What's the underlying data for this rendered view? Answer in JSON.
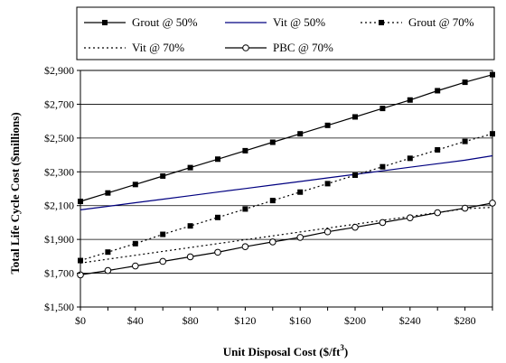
{
  "chart_data": {
    "type": "line",
    "xlabel": "Unit Disposal Cost ($/ft",
    "xlabel_sup": "3",
    "xlabel_end": ")",
    "ylabel": "Total Life Cycle Cost ($millions)",
    "xlim": [
      0,
      300
    ],
    "ylim": [
      1500,
      2900
    ],
    "x_ticks": [
      0,
      40,
      80,
      120,
      160,
      200,
      240,
      280
    ],
    "x_tick_labels": [
      "$0",
      "$40",
      "$80",
      "$120",
      "$160",
      "$200",
      "$240",
      "$280"
    ],
    "y_ticks": [
      1500,
      1700,
      1900,
      2100,
      2300,
      2500,
      2700,
      2900
    ],
    "y_tick_labels": [
      "$1,500",
      "$1,700",
      "$1,900",
      "$2,100",
      "$2,300",
      "$2,500",
      "$2,700",
      "$2,900"
    ],
    "grid": "horizontal",
    "legend_position": "top",
    "x": [
      0,
      20,
      40,
      60,
      80,
      100,
      120,
      140,
      160,
      180,
      200,
      220,
      240,
      260,
      280,
      300
    ],
    "series": [
      {
        "name": "Grout @ 50%",
        "color": "#000000",
        "dash": "solid",
        "marker": "filled-square",
        "values": [
          2125,
          2175,
          2225,
          2275,
          2325,
          2375,
          2425,
          2475,
          2525,
          2575,
          2625,
          2675,
          2725,
          2780,
          2830,
          2875
        ]
      },
      {
        "name": "Vit @ 50%",
        "color": "#000080",
        "dash": "solid",
        "marker": "none",
        "values": [
          2075,
          2096,
          2117,
          2138,
          2159,
          2180,
          2201,
          2222,
          2243,
          2264,
          2285,
          2306,
          2327,
          2348,
          2369,
          2395
        ]
      },
      {
        "name": "Grout @ 70%",
        "color": "#000000",
        "dash": "dotted",
        "marker": "filled-square",
        "values": [
          1775,
          1825,
          1875,
          1930,
          1980,
          2030,
          2080,
          2130,
          2180,
          2230,
          2280,
          2330,
          2380,
          2430,
          2480,
          2525
        ]
      },
      {
        "name": "Vit @ 70%",
        "color": "#000000",
        "dash": "dotted",
        "marker": "none",
        "values": [
          1760,
          1783,
          1806,
          1829,
          1852,
          1875,
          1898,
          1921,
          1944,
          1967,
          1990,
          2013,
          2036,
          2059,
          2082,
          2090
        ]
      },
      {
        "name": "PBC @ 70%",
        "color": "#000000",
        "dash": "solid",
        "marker": "open-circle",
        "values": [
          1690,
          1716,
          1743,
          1770,
          1797,
          1824,
          1857,
          1885,
          1912,
          1945,
          1972,
          2000,
          2028,
          2058,
          2085,
          2115
        ]
      }
    ]
  }
}
